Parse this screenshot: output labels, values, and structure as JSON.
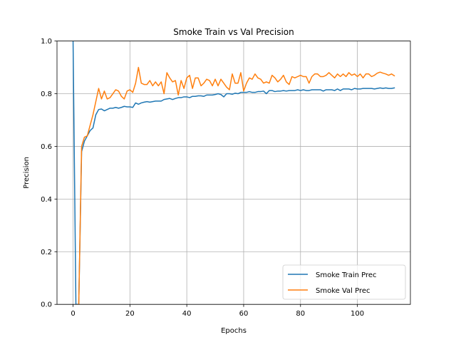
{
  "chart_data": {
    "type": "line",
    "title": "Smoke Train vs Val Precision",
    "xlabel": "Epochs",
    "ylabel": "Precision",
    "xlim": [
      -5.65,
      118.65
    ],
    "ylim": [
      0,
      1
    ],
    "xticks": [
      0,
      20,
      40,
      60,
      80,
      100
    ],
    "yticks": [
      0.0,
      0.2,
      0.4,
      0.6,
      0.8,
      1.0
    ],
    "xtick_labels": [
      "0",
      "20",
      "40",
      "60",
      "80",
      "100"
    ],
    "ytick_labels": [
      "0.0",
      "0.2",
      "0.4",
      "0.6",
      "0.8",
      "1.0"
    ],
    "grid": true,
    "legend_position": "lower-right",
    "series": [
      {
        "name": "Smoke Train Prec",
        "color": "#1f77b4",
        "x": [
          0,
          1,
          2,
          3,
          4,
          5,
          6,
          7,
          8,
          9,
          10,
          11,
          12,
          13,
          14,
          15,
          16,
          17,
          18,
          19,
          20,
          21,
          22,
          23,
          24,
          25,
          26,
          27,
          28,
          29,
          30,
          31,
          32,
          33,
          34,
          35,
          36,
          37,
          38,
          39,
          40,
          41,
          42,
          43,
          44,
          45,
          46,
          47,
          48,
          49,
          50,
          51,
          52,
          53,
          54,
          55,
          56,
          57,
          58,
          59,
          60,
          61,
          62,
          63,
          64,
          65,
          66,
          67,
          68,
          69,
          70,
          71,
          72,
          73,
          74,
          75,
          76,
          77,
          78,
          79,
          80,
          81,
          82,
          83,
          84,
          85,
          86,
          87,
          88,
          89,
          90,
          91,
          92,
          93,
          94,
          95,
          96,
          97,
          98,
          99,
          100,
          101,
          102,
          103,
          104,
          105,
          106,
          107,
          108,
          109,
          110,
          111,
          112,
          113
        ],
        "values": [
          1.0,
          0.0,
          0.0,
          0.58,
          0.62,
          0.64,
          0.66,
          0.67,
          0.72,
          0.74,
          0.742,
          0.735,
          0.74,
          0.745,
          0.745,
          0.748,
          0.745,
          0.748,
          0.752,
          0.75,
          0.75,
          0.748,
          0.765,
          0.76,
          0.765,
          0.768,
          0.77,
          0.768,
          0.77,
          0.772,
          0.772,
          0.772,
          0.778,
          0.78,
          0.782,
          0.778,
          0.782,
          0.785,
          0.785,
          0.788,
          0.788,
          0.785,
          0.79,
          0.79,
          0.792,
          0.792,
          0.79,
          0.795,
          0.795,
          0.795,
          0.797,
          0.8,
          0.797,
          0.788,
          0.8,
          0.8,
          0.798,
          0.802,
          0.8,
          0.805,
          0.805,
          0.805,
          0.808,
          0.805,
          0.805,
          0.808,
          0.808,
          0.81,
          0.8,
          0.812,
          0.812,
          0.808,
          0.81,
          0.81,
          0.812,
          0.81,
          0.812,
          0.812,
          0.812,
          0.815,
          0.812,
          0.815,
          0.812,
          0.812,
          0.815,
          0.815,
          0.815,
          0.815,
          0.81,
          0.815,
          0.815,
          0.815,
          0.812,
          0.818,
          0.812,
          0.818,
          0.818,
          0.818,
          0.815,
          0.82,
          0.818,
          0.818,
          0.82,
          0.82,
          0.82,
          0.82,
          0.818,
          0.82,
          0.822,
          0.82,
          0.822,
          0.82,
          0.82,
          0.822
        ]
      },
      {
        "name": "Smoke Val Prec",
        "color": "#ff7f0e",
        "x": [
          0,
          1,
          2,
          3,
          4,
          5,
          6,
          7,
          8,
          9,
          10,
          11,
          12,
          13,
          14,
          15,
          16,
          17,
          18,
          19,
          20,
          21,
          22,
          23,
          24,
          25,
          26,
          27,
          28,
          29,
          30,
          31,
          32,
          33,
          34,
          35,
          36,
          37,
          38,
          39,
          40,
          41,
          42,
          43,
          44,
          45,
          46,
          47,
          48,
          49,
          50,
          51,
          52,
          53,
          54,
          55,
          56,
          57,
          58,
          59,
          60,
          61,
          62,
          63,
          64,
          65,
          66,
          67,
          68,
          69,
          70,
          71,
          72,
          73,
          74,
          75,
          76,
          77,
          78,
          79,
          80,
          81,
          82,
          83,
          84,
          85,
          86,
          87,
          88,
          89,
          90,
          91,
          92,
          93,
          94,
          95,
          96,
          97,
          98,
          99,
          100,
          101,
          102,
          103,
          104,
          105,
          106,
          107,
          108,
          109,
          110,
          111,
          112,
          113
        ],
        "values": [
          null,
          null,
          0.0,
          0.6,
          0.635,
          0.64,
          0.68,
          0.72,
          0.77,
          0.82,
          0.78,
          0.81,
          0.78,
          0.785,
          0.8,
          0.815,
          0.81,
          0.79,
          0.78,
          0.81,
          0.815,
          0.805,
          0.84,
          0.9,
          0.84,
          0.835,
          0.835,
          0.85,
          0.83,
          0.845,
          0.83,
          0.845,
          0.8,
          0.88,
          0.86,
          0.845,
          0.85,
          0.795,
          0.85,
          0.82,
          0.86,
          0.87,
          0.82,
          0.86,
          0.86,
          0.83,
          0.84,
          0.855,
          0.85,
          0.83,
          0.855,
          0.83,
          0.855,
          0.84,
          0.825,
          0.815,
          0.875,
          0.84,
          0.84,
          0.88,
          0.81,
          0.84,
          0.86,
          0.855,
          0.875,
          0.86,
          0.855,
          0.84,
          0.845,
          0.84,
          0.87,
          0.86,
          0.845,
          0.855,
          0.87,
          0.845,
          0.835,
          0.865,
          0.86,
          0.865,
          0.87,
          0.865,
          0.865,
          0.84,
          0.865,
          0.875,
          0.875,
          0.865,
          0.865,
          0.87,
          0.88,
          0.87,
          0.86,
          0.875,
          0.865,
          0.875,
          0.865,
          0.88,
          0.87,
          0.875,
          0.865,
          0.875,
          0.86,
          0.875,
          0.875,
          0.865,
          0.87,
          0.878,
          0.882,
          0.878,
          0.875,
          0.87,
          0.875,
          0.868
        ]
      }
    ]
  }
}
